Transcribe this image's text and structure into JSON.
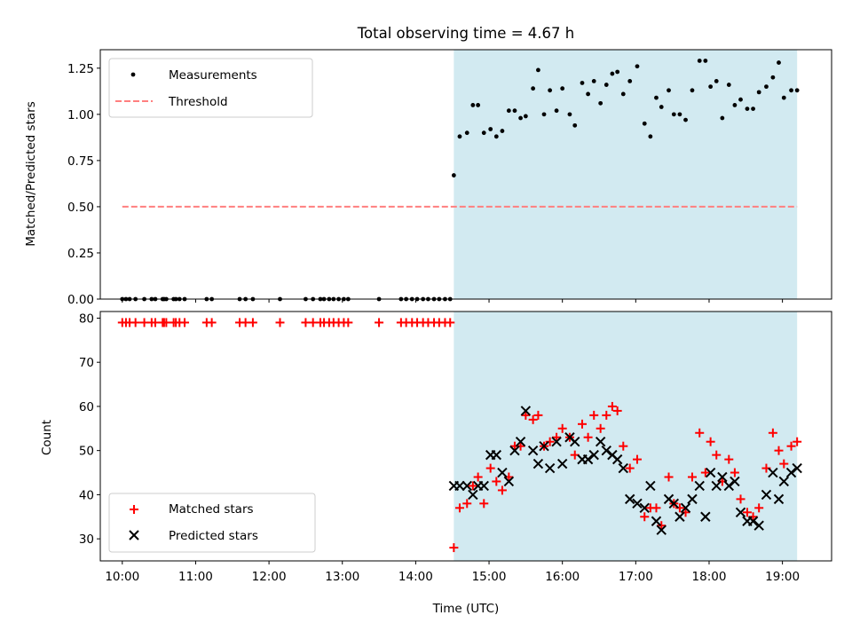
{
  "chart_data": [
    {
      "type": "scatter",
      "title": "Total observing time = 4.67 h",
      "xlabel": "",
      "ylabel": "Matched/Predicted stars",
      "ylim": [
        0,
        1.35
      ],
      "yticks": [
        0.0,
        0.25,
        0.5,
        0.75,
        1.0,
        1.25
      ],
      "ytick_labels": [
        "0.00",
        "0.25",
        "0.50",
        "0.75",
        "1.00",
        "1.25"
      ],
      "xlim_hours": [
        9.7,
        19.67
      ],
      "shaded_span_hours": [
        14.52,
        19.2
      ],
      "shade_color": "#add8e6",
      "legend": {
        "placement": "upper-left",
        "entries": [
          "Measurements",
          "Threshold"
        ]
      },
      "threshold": {
        "name": "Threshold",
        "y": 0.5,
        "x_start_hours": 10.0,
        "x_end_hours": 19.2,
        "color": "#ff7f7f",
        "style": "dashed"
      },
      "series": [
        {
          "name": "Measurements",
          "marker": "dot",
          "color": "#000000",
          "points": [
            [
              10.0,
              0
            ],
            [
              10.05,
              0
            ],
            [
              10.1,
              0
            ],
            [
              10.18,
              0
            ],
            [
              10.3,
              0
            ],
            [
              10.4,
              0
            ],
            [
              10.45,
              0
            ],
            [
              10.55,
              0
            ],
            [
              10.57,
              0
            ],
            [
              10.6,
              0
            ],
            [
              10.7,
              0
            ],
            [
              10.73,
              0
            ],
            [
              10.78,
              0
            ],
            [
              10.85,
              0
            ],
            [
              11.15,
              0
            ],
            [
              11.22,
              0
            ],
            [
              11.6,
              0
            ],
            [
              11.68,
              0
            ],
            [
              11.78,
              0
            ],
            [
              12.15,
              0
            ],
            [
              12.5,
              0
            ],
            [
              12.6,
              0
            ],
            [
              12.7,
              0
            ],
            [
              12.75,
              0
            ],
            [
              12.82,
              0
            ],
            [
              12.88,
              0
            ],
            [
              12.95,
              0
            ],
            [
              13.02,
              0
            ],
            [
              13.08,
              0
            ],
            [
              13.5,
              0
            ],
            [
              13.8,
              0
            ],
            [
              13.87,
              0
            ],
            [
              13.95,
              0
            ],
            [
              14.02,
              0
            ],
            [
              14.1,
              0
            ],
            [
              14.17,
              0
            ],
            [
              14.25,
              0
            ],
            [
              14.32,
              0
            ],
            [
              14.4,
              0
            ],
            [
              14.47,
              0
            ],
            [
              14.52,
              0.67
            ],
            [
              14.6,
              0.88
            ],
            [
              14.7,
              0.9
            ],
            [
              14.78,
              1.05
            ],
            [
              14.85,
              1.05
            ],
            [
              14.93,
              0.9
            ],
            [
              15.02,
              0.92
            ],
            [
              15.1,
              0.88
            ],
            [
              15.18,
              0.91
            ],
            [
              15.27,
              1.02
            ],
            [
              15.35,
              1.02
            ],
            [
              15.43,
              0.98
            ],
            [
              15.5,
              0.99
            ],
            [
              15.6,
              1.14
            ],
            [
              15.67,
              1.24
            ],
            [
              15.75,
              1.0
            ],
            [
              15.83,
              1.13
            ],
            [
              15.92,
              1.02
            ],
            [
              16.0,
              1.14
            ],
            [
              16.1,
              1.0
            ],
            [
              16.17,
              0.94
            ],
            [
              16.27,
              1.17
            ],
            [
              16.35,
              1.11
            ],
            [
              16.43,
              1.18
            ],
            [
              16.52,
              1.06
            ],
            [
              16.6,
              1.16
            ],
            [
              16.68,
              1.22
            ],
            [
              16.75,
              1.23
            ],
            [
              16.83,
              1.11
            ],
            [
              16.92,
              1.18
            ],
            [
              17.02,
              1.26
            ],
            [
              17.12,
              0.95
            ],
            [
              17.2,
              0.88
            ],
            [
              17.28,
              1.09
            ],
            [
              17.35,
              1.04
            ],
            [
              17.45,
              1.13
            ],
            [
              17.52,
              1.0
            ],
            [
              17.6,
              1.0
            ],
            [
              17.68,
              0.97
            ],
            [
              17.77,
              1.13
            ],
            [
              17.87,
              1.29
            ],
            [
              17.95,
              1.29
            ],
            [
              18.02,
              1.15
            ],
            [
              18.1,
              1.18
            ],
            [
              18.18,
              0.98
            ],
            [
              18.27,
              1.16
            ],
            [
              18.35,
              1.05
            ],
            [
              18.43,
              1.08
            ],
            [
              18.52,
              1.03
            ],
            [
              18.6,
              1.03
            ],
            [
              18.68,
              1.12
            ],
            [
              18.78,
              1.15
            ],
            [
              18.87,
              1.2
            ],
            [
              18.95,
              1.28
            ],
            [
              19.02,
              1.09
            ],
            [
              19.12,
              1.13
            ],
            [
              19.2,
              1.13
            ]
          ]
        }
      ]
    },
    {
      "type": "scatter",
      "title": "",
      "xlabel": "Time (UTC)",
      "ylabel": "Count",
      "ylim": [
        25,
        81.5
      ],
      "yticks": [
        30,
        40,
        50,
        60,
        70,
        80
      ],
      "xlim_hours": [
        9.7,
        19.67
      ],
      "xticks_hours": [
        10,
        11,
        12,
        13,
        14,
        15,
        16,
        17,
        18,
        19
      ],
      "xtick_labels": [
        "10:00",
        "11:00",
        "12:00",
        "13:00",
        "14:00",
        "15:00",
        "16:00",
        "17:00",
        "18:00",
        "19:00"
      ],
      "shaded_span_hours": [
        14.52,
        19.2
      ],
      "shade_color": "#add8e6",
      "legend": {
        "placement": "lower-left",
        "entries": [
          "Matched stars",
          "Predicted stars"
        ]
      },
      "series": [
        {
          "name": "Matched stars",
          "marker": "plus",
          "color": "#ff0000",
          "points": [
            [
              10.0,
              79
            ],
            [
              10.05,
              79
            ],
            [
              10.1,
              79
            ],
            [
              10.18,
              79
            ],
            [
              10.3,
              79
            ],
            [
              10.4,
              79
            ],
            [
              10.45,
              79
            ],
            [
              10.55,
              79
            ],
            [
              10.57,
              79
            ],
            [
              10.6,
              79
            ],
            [
              10.7,
              79
            ],
            [
              10.73,
              79
            ],
            [
              10.78,
              79
            ],
            [
              10.85,
              79
            ],
            [
              11.15,
              79
            ],
            [
              11.22,
              79
            ],
            [
              11.6,
              79
            ],
            [
              11.68,
              79
            ],
            [
              11.78,
              79
            ],
            [
              12.15,
              79
            ],
            [
              12.5,
              79
            ],
            [
              12.6,
              79
            ],
            [
              12.7,
              79
            ],
            [
              12.75,
              79
            ],
            [
              12.82,
              79
            ],
            [
              12.88,
              79
            ],
            [
              12.95,
              79
            ],
            [
              13.02,
              79
            ],
            [
              13.08,
              79
            ],
            [
              13.5,
              79
            ],
            [
              13.8,
              79
            ],
            [
              13.87,
              79
            ],
            [
              13.95,
              79
            ],
            [
              14.02,
              79
            ],
            [
              14.1,
              79
            ],
            [
              14.17,
              79
            ],
            [
              14.25,
              79
            ],
            [
              14.32,
              79
            ],
            [
              14.4,
              79
            ],
            [
              14.47,
              79
            ],
            [
              14.52,
              28
            ],
            [
              14.6,
              37
            ],
            [
              14.7,
              38
            ],
            [
              14.78,
              42
            ],
            [
              14.85,
              44
            ],
            [
              14.93,
              38
            ],
            [
              15.02,
              46
            ],
            [
              15.1,
              43
            ],
            [
              15.18,
              41
            ],
            [
              15.27,
              44
            ],
            [
              15.35,
              51
            ],
            [
              15.43,
              51
            ],
            [
              15.5,
              58
            ],
            [
              15.6,
              57
            ],
            [
              15.67,
              58
            ],
            [
              15.75,
              51
            ],
            [
              15.83,
              52
            ],
            [
              15.92,
              53
            ],
            [
              16.0,
              55
            ],
            [
              16.1,
              53
            ],
            [
              16.17,
              49
            ],
            [
              16.27,
              56
            ],
            [
              16.35,
              53
            ],
            [
              16.43,
              58
            ],
            [
              16.52,
              55
            ],
            [
              16.6,
              58
            ],
            [
              16.68,
              60
            ],
            [
              16.75,
              59
            ],
            [
              16.83,
              51
            ],
            [
              16.92,
              46
            ],
            [
              17.02,
              48
            ],
            [
              17.12,
              35
            ],
            [
              17.2,
              37
            ],
            [
              17.28,
              37
            ],
            [
              17.35,
              33
            ],
            [
              17.45,
              44
            ],
            [
              17.52,
              38
            ],
            [
              17.6,
              37
            ],
            [
              17.68,
              36
            ],
            [
              17.77,
              44
            ],
            [
              17.87,
              54
            ],
            [
              17.95,
              45
            ],
            [
              18.02,
              52
            ],
            [
              18.1,
              49
            ],
            [
              18.18,
              43
            ],
            [
              18.27,
              48
            ],
            [
              18.35,
              45
            ],
            [
              18.43,
              39
            ],
            [
              18.52,
              36
            ],
            [
              18.6,
              35
            ],
            [
              18.68,
              37
            ],
            [
              18.78,
              46
            ],
            [
              18.87,
              54
            ],
            [
              18.95,
              50
            ],
            [
              19.02,
              47
            ],
            [
              19.12,
              51
            ],
            [
              19.2,
              52
            ]
          ]
        },
        {
          "name": "Predicted stars",
          "marker": "x",
          "color": "#000000",
          "points": [
            [
              14.52,
              42
            ],
            [
              14.6,
              42
            ],
            [
              14.7,
              42
            ],
            [
              14.78,
              40
            ],
            [
              14.85,
              42
            ],
            [
              14.93,
              42
            ],
            [
              15.02,
              49
            ],
            [
              15.1,
              49
            ],
            [
              15.18,
              45
            ],
            [
              15.27,
              43
            ],
            [
              15.35,
              50
            ],
            [
              15.43,
              52
            ],
            [
              15.5,
              59
            ],
            [
              15.6,
              50
            ],
            [
              15.67,
              47
            ],
            [
              15.75,
              51
            ],
            [
              15.83,
              46
            ],
            [
              15.92,
              52
            ],
            [
              16.0,
              47
            ],
            [
              16.1,
              53
            ],
            [
              16.17,
              52
            ],
            [
              16.27,
              48
            ],
            [
              16.35,
              48
            ],
            [
              16.43,
              49
            ],
            [
              16.52,
              52
            ],
            [
              16.6,
              50
            ],
            [
              16.68,
              49
            ],
            [
              16.75,
              48
            ],
            [
              16.83,
              46
            ],
            [
              16.92,
              39
            ],
            [
              17.02,
              38
            ],
            [
              17.12,
              37
            ],
            [
              17.2,
              42
            ],
            [
              17.28,
              34
            ],
            [
              17.35,
              32
            ],
            [
              17.45,
              39
            ],
            [
              17.52,
              38
            ],
            [
              17.6,
              35
            ],
            [
              17.68,
              37
            ],
            [
              17.77,
              39
            ],
            [
              17.87,
              42
            ],
            [
              17.95,
              35
            ],
            [
              18.02,
              45
            ],
            [
              18.1,
              42
            ],
            [
              18.18,
              44
            ],
            [
              18.27,
              42
            ],
            [
              18.35,
              43
            ],
            [
              18.43,
              36
            ],
            [
              18.52,
              34
            ],
            [
              18.6,
              34
            ],
            [
              18.68,
              33
            ],
            [
              18.78,
              40
            ],
            [
              18.87,
              45
            ],
            [
              18.95,
              39
            ],
            [
              19.02,
              43
            ],
            [
              19.12,
              45
            ],
            [
              19.2,
              46
            ]
          ]
        }
      ]
    }
  ]
}
